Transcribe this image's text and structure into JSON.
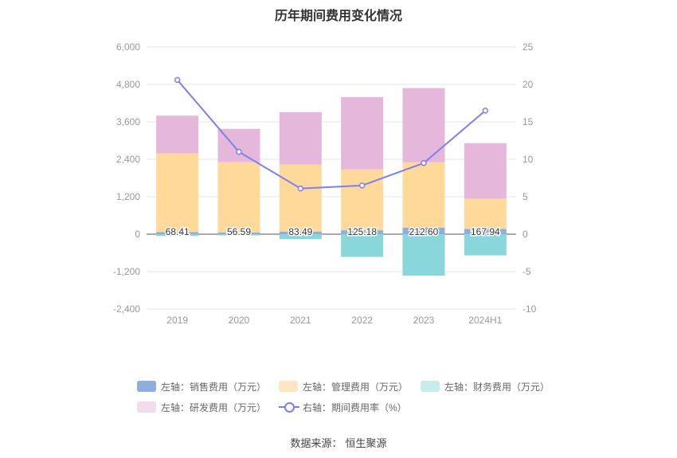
{
  "chart_data": {
    "type": "bar",
    "title": "历年期间费用变化情况",
    "categories": [
      "2019",
      "2020",
      "2021",
      "2022",
      "2023",
      "2024H1"
    ],
    "left_axis": {
      "ylim": [
        -2400,
        6000
      ],
      "ticks": [
        "-2,400",
        "-1,200",
        "0",
        "1,200",
        "2,400",
        "3,600",
        "4,800",
        "6,000"
      ],
      "tick_values": [
        -2400,
        -1200,
        0,
        1200,
        2400,
        3600,
        4800,
        6000
      ]
    },
    "right_axis": {
      "ylim": [
        -10,
        25
      ],
      "ticks": [
        "-10",
        "-5",
        "0",
        "5",
        "10",
        "15",
        "20",
        "25"
      ],
      "tick_values": [
        -10,
        -5,
        0,
        5,
        10,
        15,
        20,
        25
      ]
    },
    "series": [
      {
        "name": "左轴：销售费用（万元）",
        "axis": "left",
        "type": "bar",
        "color": "#8eaedd",
        "values": [
          68.41,
          56.59,
          83.49,
          125.18,
          212.6,
          167.94
        ],
        "labels": [
          "68.41",
          "56.59",
          "83.49",
          "125.18",
          "212.60",
          "167.94"
        ]
      },
      {
        "name": "左轴：管理费用（万元）",
        "axis": "left",
        "type": "bar",
        "color": "#ffd99a",
        "values": [
          2520,
          2250,
          2150,
          1950,
          2090,
          970
        ]
      },
      {
        "name": "左轴：财务费用（万元）",
        "axis": "left",
        "type": "bar",
        "color": "#89d6db",
        "values": [
          -60,
          -40,
          -160,
          -730,
          -1330,
          -680
        ]
      },
      {
        "name": "左轴：研发费用（万元）",
        "axis": "left",
        "type": "bar",
        "color": "#e5b8db",
        "values": [
          1210,
          1070,
          1680,
          2320,
          2380,
          1780
        ]
      },
      {
        "name": "右轴：期间费用率（%）",
        "axis": "right",
        "type": "line",
        "color": "#7b7ff0",
        "values": [
          20.6,
          11.0,
          6.1,
          6.5,
          9.5,
          16.5
        ]
      }
    ],
    "legend_position": "bottom",
    "grid": true
  },
  "legend": {
    "items": [
      {
        "label": "左轴：销售费用（万元）",
        "color": "#8eaedd"
      },
      {
        "label": "左轴：管理费用（万元）",
        "color": "#ffe6c2"
      },
      {
        "label": "左轴：财务费用（万元）",
        "color": "#c6ecee"
      },
      {
        "label": "左轴：研发费用（万元）",
        "color": "#f3dcee"
      },
      {
        "label": "右轴：期间费用率（%）",
        "color": "#7b7ff0"
      }
    ]
  },
  "source": {
    "label": "数据来源：",
    "value": "恒生聚源"
  }
}
